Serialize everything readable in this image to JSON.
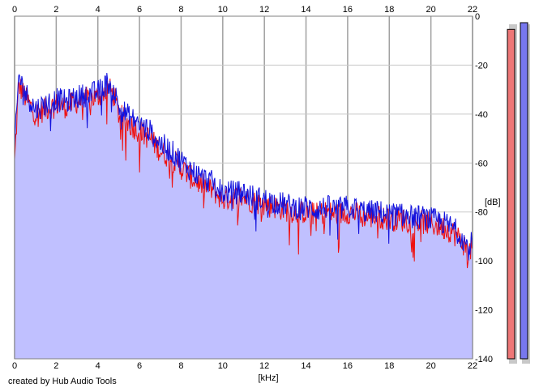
{
  "chart_data": {
    "type": "area",
    "title": "",
    "xlabel": "[kHz]",
    "ylabel": "[dB]",
    "xlim": [
      0,
      22
    ],
    "ylim": [
      -140,
      0
    ],
    "x_ticks": [
      0,
      2,
      4,
      6,
      8,
      10,
      12,
      14,
      16,
      18,
      20,
      22
    ],
    "y_ticks": [
      0,
      -20,
      -40,
      -60,
      -80,
      -100,
      -120,
      -140
    ],
    "grid": true,
    "legend": "none",
    "series": [
      {
        "color": "#ee1111",
        "x": [
          0,
          0.2,
          0.5,
          1,
          1.5,
          2,
          2.5,
          3,
          3.5,
          4,
          4.5,
          4.8,
          5,
          5.5,
          6,
          6.5,
          7,
          7.5,
          8,
          8.5,
          9,
          9.5,
          10,
          10.5,
          11,
          11.5,
          12,
          12.5,
          13,
          13.5,
          14,
          14.5,
          15,
          15.5,
          16,
          16.5,
          17,
          17.5,
          18,
          18.5,
          19,
          19.5,
          20,
          20.5,
          21,
          21.5,
          21.8,
          22
        ],
        "values": [
          -60,
          -28,
          -33,
          -40,
          -38,
          -36,
          -37,
          -35,
          -34,
          -33,
          -29,
          -33,
          -40,
          -44,
          -47,
          -50,
          -55,
          -58,
          -62,
          -66,
          -69,
          -71,
          -75,
          -74,
          -74,
          -76,
          -77,
          -78,
          -79,
          -80,
          -80,
          -81,
          -80,
          -81,
          -80,
          -81,
          -82,
          -82,
          -83,
          -83,
          -84,
          -84,
          -85,
          -86,
          -88,
          -92,
          -97,
          -94
        ]
      },
      {
        "color": "#1111dd",
        "x": [
          0,
          0.2,
          0.5,
          1,
          1.5,
          2,
          2.5,
          3,
          3.5,
          4,
          4.5,
          4.8,
          5,
          5.5,
          6,
          6.5,
          7,
          7.5,
          8,
          8.5,
          9,
          9.5,
          10,
          10.5,
          11,
          11.5,
          12,
          12.5,
          13,
          13.5,
          14,
          14.5,
          15,
          15.5,
          16,
          16.5,
          17,
          17.5,
          18,
          18.5,
          19,
          19.5,
          20,
          20.5,
          21,
          21.5,
          21.8,
          22
        ],
        "values": [
          -55,
          -24,
          -31,
          -38,
          -36,
          -34,
          -35,
          -33,
          -32,
          -31,
          -27,
          -31,
          -37,
          -41,
          -44,
          -47,
          -52,
          -55,
          -59,
          -63,
          -66,
          -68,
          -72,
          -72,
          -72,
          -74,
          -75,
          -76,
          -77,
          -78,
          -78,
          -79,
          -78,
          -79,
          -78,
          -79,
          -80,
          -80,
          -81,
          -81,
          -82,
          -82,
          -83,
          -84,
          -86,
          -90,
          -95,
          -92
        ]
      }
    ],
    "level_meters": [
      {
        "channel": "left",
        "color": "#ee7777",
        "level": 0.98
      },
      {
        "channel": "right",
        "color": "#7777ee",
        "level": 1.0
      }
    ],
    "fill_color": "#c0c0ff"
  },
  "footer": {
    "credit": "created by Hub Audio Tools"
  }
}
